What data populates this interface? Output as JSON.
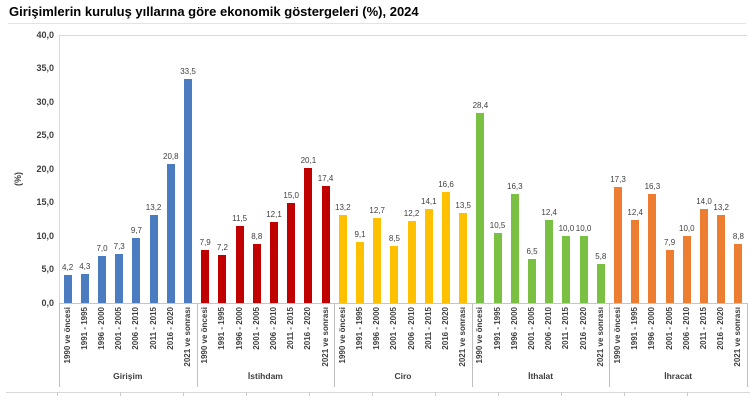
{
  "title": "Girişimlerin kuruluş yıllarına göre ekonomik göstergeleri (%), 2024",
  "chart_data": {
    "type": "bar",
    "title": "Girişimlerin kuruluş yıllarına göre ekonomik göstergeleri (%), 2024",
    "ylabel": "(%)",
    "ylim": [
      0,
      40
    ],
    "ytick_labels": [
      "0,0",
      "5,0",
      "10,0",
      "15,0",
      "20,0",
      "25,0",
      "30,0",
      "35,0",
      "40,0"
    ],
    "grid": "off",
    "legend": "none",
    "categories": [
      "1990 ve öncesi",
      "1991 - 1995",
      "1996 - 2000",
      "2001 - 2005",
      "2006 - 2010",
      "2011 - 2015",
      "2016 - 2020",
      "2021 ve sonrası"
    ],
    "series": [
      {
        "name": "Girişim",
        "color": "#4a7cbf",
        "values": [
          4.2,
          4.3,
          7.0,
          7.3,
          9.7,
          13.2,
          20.8,
          33.5
        ]
      },
      {
        "name": "İstihdam",
        "color": "#c00000",
        "values": [
          7.9,
          7.2,
          11.5,
          8.8,
          12.1,
          15.0,
          20.1,
          17.4
        ]
      },
      {
        "name": "Ciro",
        "color": "#ffc000",
        "values": [
          13.2,
          9.1,
          12.7,
          8.5,
          12.2,
          14.1,
          16.6,
          13.5
        ]
      },
      {
        "name": "İthalat",
        "color": "#7ac143",
        "values": [
          28.4,
          10.5,
          16.3,
          6.5,
          12.4,
          10.0,
          10.0,
          5.8
        ]
      },
      {
        "name": "İhracat",
        "color": "#ed7d31",
        "values": [
          17.3,
          12.4,
          16.3,
          7.9,
          10.0,
          14.0,
          13.2,
          8.8
        ]
      }
    ]
  }
}
